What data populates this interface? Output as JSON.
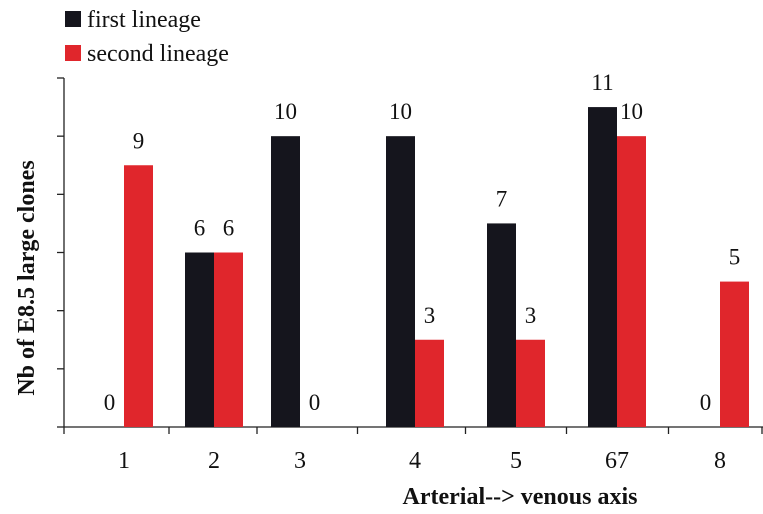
{
  "chart_data": {
    "type": "bar",
    "categories": [
      "1",
      "2",
      "3",
      "4",
      "5",
      "67",
      "8"
    ],
    "series": [
      {
        "name": "first lineage",
        "values": [
          0,
          6,
          10,
          10,
          7,
          11,
          0
        ],
        "color": "#15151d"
      },
      {
        "name": "second lineage",
        "values": [
          9,
          6,
          0,
          3,
          3,
          10,
          5
        ],
        "color": "#e0262c"
      }
    ],
    "xlabel": "Arterial--> venous axis",
    "ylabel": "Nb of E8.5 large clones",
    "ylim": [
      0,
      12
    ],
    "yticks": [
      0,
      2,
      4,
      6,
      8,
      10,
      12
    ],
    "grid": false,
    "legend_position": "top-left"
  }
}
